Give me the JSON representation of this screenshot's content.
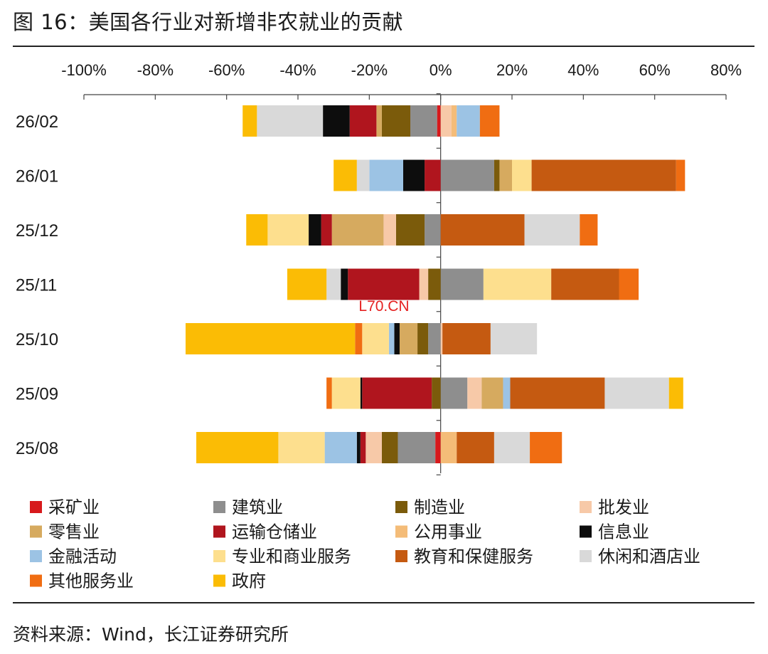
{
  "figure": {
    "title": "图 16：美国各行业对新增非农就业的贡献",
    "source": "资料来源：Wind，长江证券研究所",
    "watermark": "L70.CN"
  },
  "chart_data": {
    "type": "bar",
    "orientation": "horizontal",
    "stacked": true,
    "xlim": [
      -100,
      80
    ],
    "x_unit": "%",
    "x_ticks": [
      -100,
      -80,
      -60,
      -40,
      -20,
      0,
      20,
      40,
      60,
      80
    ],
    "x_tick_labels": [
      "-100%",
      "-80%",
      "-60%",
      "-40%",
      "-20%",
      "0%",
      "20%",
      "40%",
      "60%",
      "80%"
    ],
    "x_axis_position": "top",
    "legend_position": "bottom",
    "categories": [
      "26/02",
      "26/01",
      "25/12",
      "25/11",
      "25/10",
      "25/09",
      "25/08"
    ],
    "series": [
      {
        "name": "采矿业",
        "color": "#d7191c",
        "values": [
          -1.0,
          0,
          0,
          0,
          0,
          0,
          -1.5
        ]
      },
      {
        "name": "建筑业",
        "color": "#8e8e8e",
        "values": [
          -7.5,
          15.0,
          -4.5,
          12.0,
          -3.5,
          7.5,
          -10.5
        ]
      },
      {
        "name": "制造业",
        "color": "#7b5b0b",
        "values": [
          -8.0,
          1.5,
          -8.0,
          -3.5,
          -3.0,
          -2.5,
          -4.5
        ]
      },
      {
        "name": "批发业",
        "color": "#f7c9a8",
        "values": [
          3.0,
          0,
          -3.5,
          -2.5,
          0.5,
          4.0,
          -4.5
        ]
      },
      {
        "name": "零售业",
        "color": "#d6aa5f",
        "values": [
          -1.5,
          3.5,
          -14.5,
          0,
          -5.0,
          6.0,
          0
        ]
      },
      {
        "name": "运输仓储业",
        "color": "#b0151e",
        "values": [
          -7.5,
          -4.5,
          -3.0,
          -20.0,
          0,
          -19.5,
          -1.5
        ]
      },
      {
        "name": "公用事业",
        "color": "#f4bc78",
        "values": [
          1.5,
          0,
          0,
          0,
          0,
          0,
          4.5
        ]
      },
      {
        "name": "信息业",
        "color": "#0d0d0d",
        "values": [
          -7.5,
          -6.0,
          -3.5,
          -2.0,
          -1.5,
          -0.5,
          -1.0
        ]
      },
      {
        "name": "金融活动",
        "color": "#9cc3e4",
        "values": [
          6.5,
          -9.5,
          0,
          0,
          -1.5,
          2.0,
          -9.0
        ]
      },
      {
        "name": "专业和商业服务",
        "color": "#fddf8e",
        "values": [
          0,
          5.5,
          -11.5,
          19.0,
          -7.5,
          -8.0,
          -13.0
        ]
      },
      {
        "name": "教育和保健服务",
        "color": "#c55a11",
        "values": [
          0,
          40.5,
          23.5,
          19.0,
          13.5,
          26.5,
          10.5
        ]
      },
      {
        "name": "休闲和酒店业",
        "color": "#d9d9d9",
        "values": [
          -18.5,
          -3.5,
          15.5,
          -4.0,
          13.0,
          18.0,
          10.0
        ]
      },
      {
        "name": "其他服务业",
        "color": "#f06d12",
        "values": [
          5.5,
          2.5,
          5.0,
          5.5,
          -2.0,
          -1.5,
          9.0
        ]
      },
      {
        "name": "政府",
        "color": "#fbbc05",
        "values": [
          -4.0,
          -6.5,
          -6.0,
          -11.0,
          -47.5,
          4.0,
          -23.0
        ]
      }
    ]
  }
}
